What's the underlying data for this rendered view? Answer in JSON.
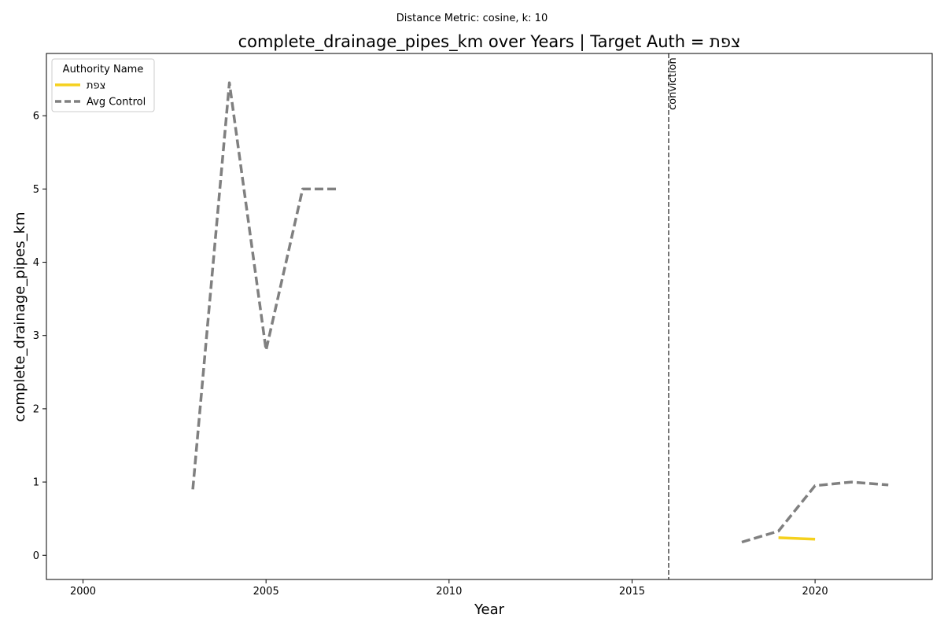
{
  "chart_data": {
    "type": "line",
    "suptitle": "Distance Metric: cosine, k: 10",
    "title": "complete_drainage_pipes_km over Years | Target Auth = צפת",
    "xlabel": "Year",
    "ylabel": "complete_drainage_pipes_km",
    "xlim": [
      1999.0,
      2023.2
    ],
    "ylim": [
      -0.33,
      6.85
    ],
    "xticks": [
      2000,
      2005,
      2010,
      2015,
      2020
    ],
    "yticks": [
      0,
      1,
      2,
      3,
      4,
      5,
      6
    ],
    "grid": false,
    "legend": {
      "title": "Authority Name",
      "placement": "top-left"
    },
    "series": [
      {
        "name": "צפת",
        "color": "#f5d11e",
        "style": "solid",
        "segments": [
          [
            [
              2019,
              0.24
            ],
            [
              2020,
              0.22
            ]
          ]
        ]
      },
      {
        "name": "Avg Control",
        "color": "#808080",
        "style": "dashed",
        "segments": [
          [
            [
              2003,
              0.9
            ],
            [
              2004,
              6.45
            ],
            [
              2005,
              2.8
            ],
            [
              2006,
              5.0
            ],
            [
              2007,
              5.0
            ]
          ],
          [
            [
              2018,
              0.18
            ],
            [
              2019,
              0.33
            ],
            [
              2020,
              0.95
            ],
            [
              2021,
              1.0
            ],
            [
              2022,
              0.96
            ]
          ]
        ]
      }
    ],
    "annotations": [
      {
        "type": "vline",
        "x": 2016,
        "text": "conviction",
        "color": "#666666"
      }
    ]
  }
}
